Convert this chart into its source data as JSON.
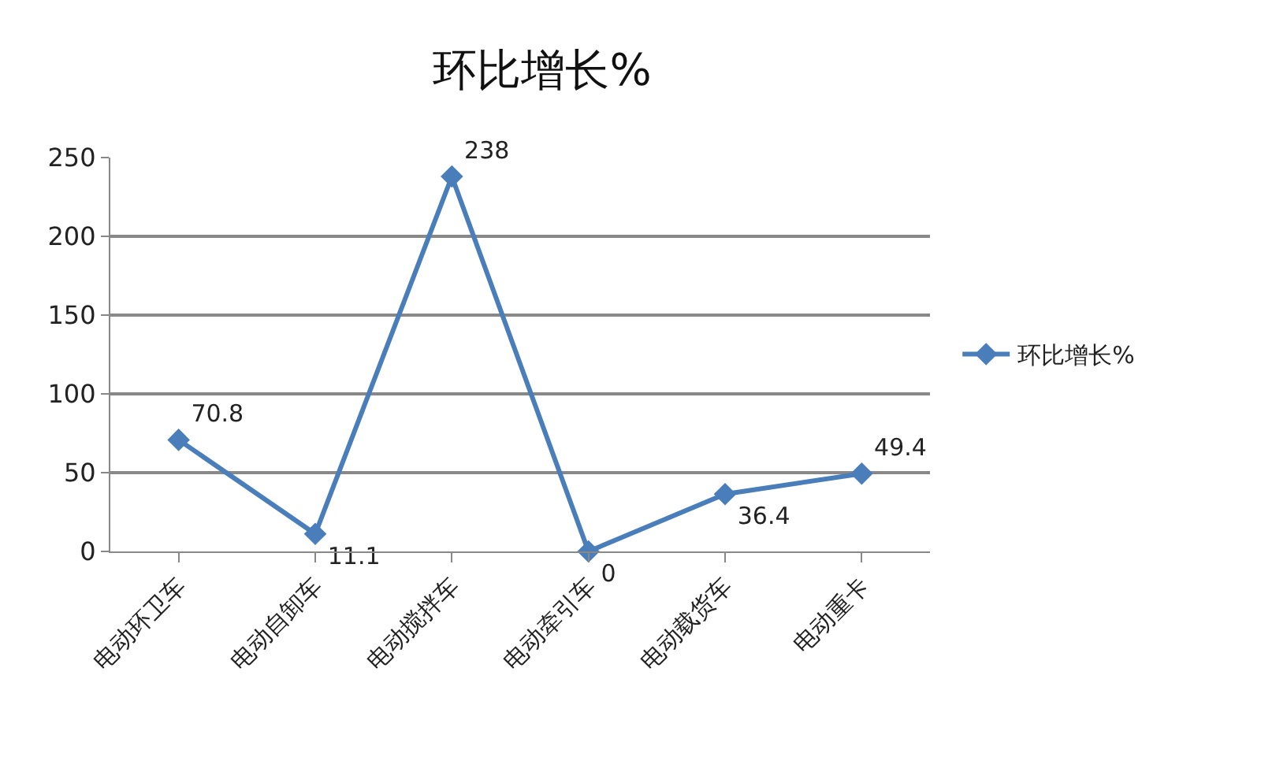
{
  "chart_data": {
    "type": "line",
    "title": "环比增长%",
    "categories": [
      "电动环卫车",
      "电动自卸车",
      "电动搅拌车",
      "电动牵引车",
      "电动载货车",
      "电动重卡"
    ],
    "series": [
      {
        "name": "环比增长%",
        "color": "#4a7ebb",
        "values": [
          70.8,
          11.1,
          238,
          0,
          36.4,
          49.4
        ]
      }
    ],
    "ylim": [
      0,
      250
    ],
    "yticks": [
      0,
      50,
      100,
      150,
      200,
      250
    ],
    "grid": "y",
    "legend": "right",
    "marker": "diamond",
    "line_style": "solid",
    "data_labels": true
  }
}
